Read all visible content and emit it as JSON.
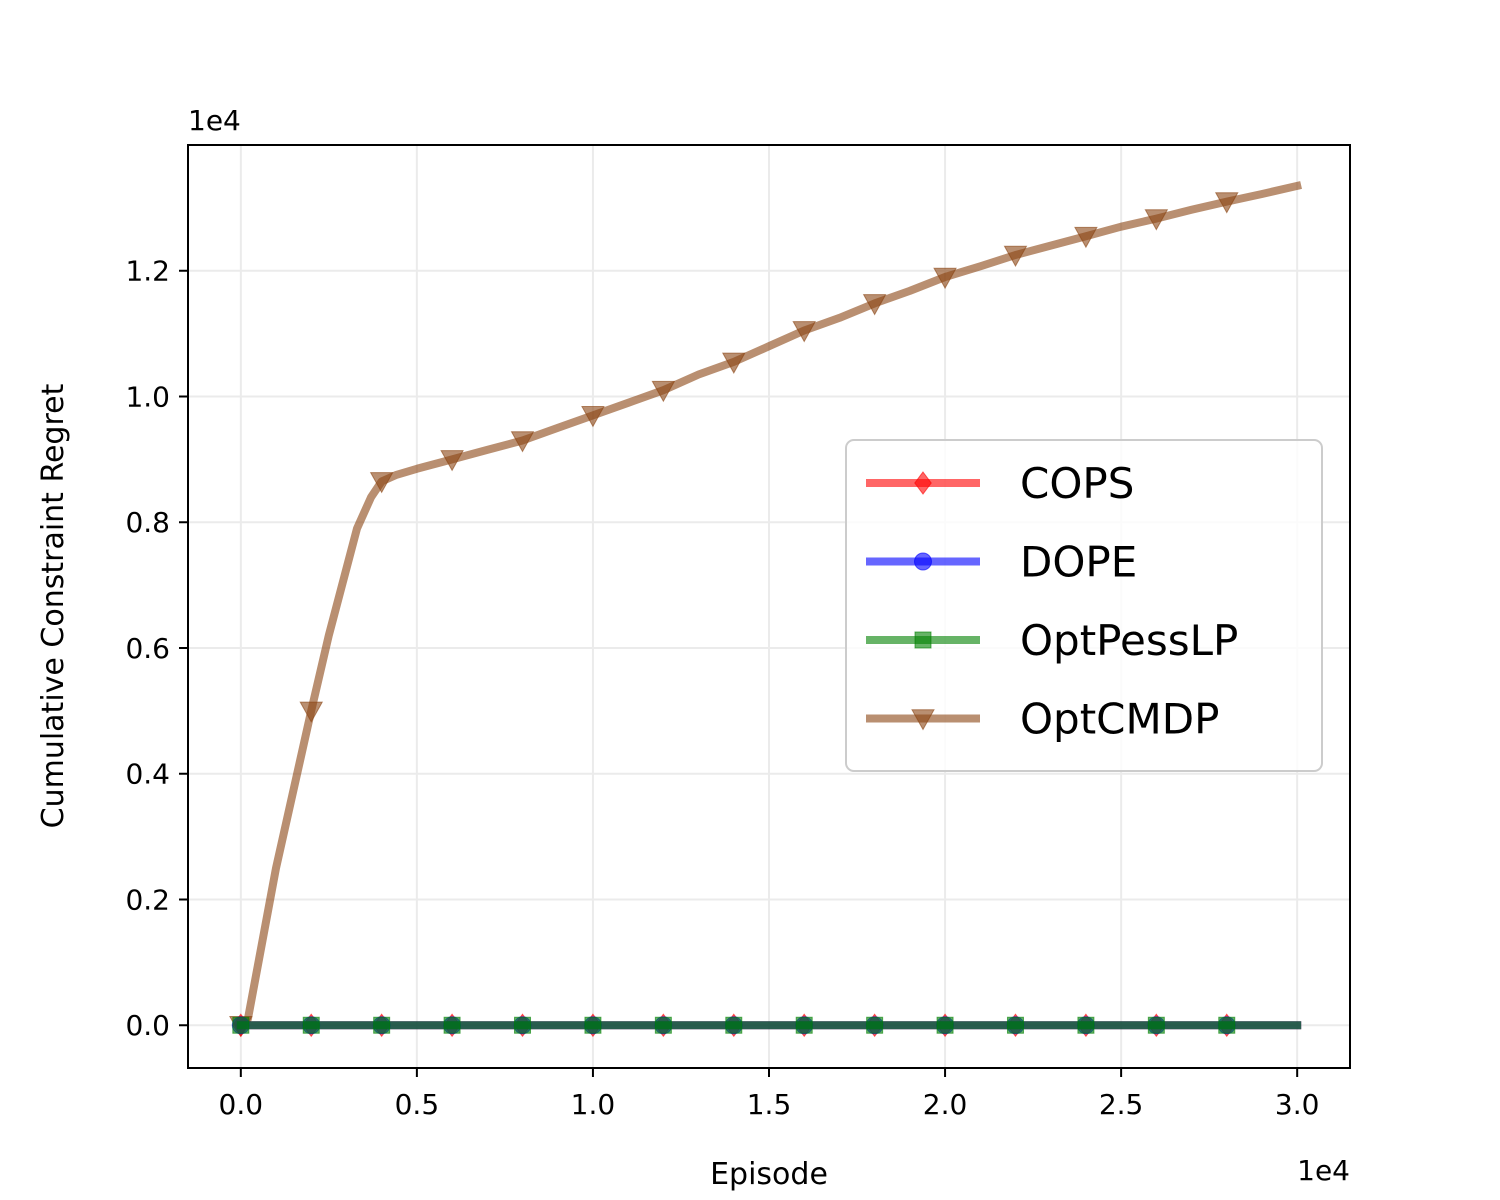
{
  "chart_data": {
    "type": "line",
    "title": "",
    "xlabel": "Episode",
    "ylabel": "Cumulative Constraint Regret",
    "x_offset_label": "1e4",
    "y_offset_label": "1e4",
    "xlim": [
      -0.15,
      3.15
    ],
    "ylim": [
      -0.068,
      1.4
    ],
    "x_ticks": [
      0.0,
      0.5,
      1.0,
      1.5,
      2.0,
      2.5,
      3.0
    ],
    "x_tick_labels": [
      "0.0",
      "0.5",
      "1.0",
      "1.5",
      "2.0",
      "2.5",
      "3.0"
    ],
    "y_ticks": [
      0.0,
      0.2,
      0.4,
      0.6,
      0.8,
      1.0,
      1.2
    ],
    "y_tick_labels": [
      "0.0",
      "0.2",
      "0.4",
      "0.6",
      "0.8",
      "1.0",
      "1.2"
    ],
    "grid": true,
    "legend_position": "center-right",
    "series": [
      {
        "name": "COPS",
        "color": "#ff0000",
        "marker": "diamond",
        "x": [
          0.0,
          0.2,
          0.4,
          0.6,
          0.8,
          1.0,
          1.2,
          1.4,
          1.6,
          1.8,
          2.0,
          2.2,
          2.4,
          2.6,
          2.8,
          3.0
        ],
        "y": [
          0,
          0,
          0,
          0,
          0,
          0,
          0,
          0,
          0,
          0,
          0,
          0,
          0,
          0,
          0,
          0
        ],
        "marker_indices": [
          0,
          1,
          2,
          3,
          4,
          5,
          6,
          7,
          8,
          9,
          10,
          11,
          12,
          13,
          14
        ]
      },
      {
        "name": "DOPE",
        "color": "#0000ff",
        "marker": "circle",
        "x": [
          0.0,
          0.2,
          0.4,
          0.6,
          0.8,
          1.0,
          1.2,
          1.4,
          1.6,
          1.8,
          2.0,
          2.2,
          2.4,
          2.6,
          2.8,
          3.0
        ],
        "y": [
          0,
          0,
          0,
          0,
          0,
          0,
          0,
          0,
          0,
          0,
          0,
          0,
          0,
          0,
          0,
          0
        ],
        "marker_indices": [
          0,
          1,
          2,
          3,
          4,
          5,
          6,
          7,
          8,
          9,
          10,
          11,
          12,
          13,
          14
        ]
      },
      {
        "name": "OptPessLP",
        "color": "#008000",
        "marker": "square",
        "x": [
          0.0,
          0.2,
          0.4,
          0.6,
          0.8,
          1.0,
          1.2,
          1.4,
          1.6,
          1.8,
          2.0,
          2.2,
          2.4,
          2.6,
          2.8,
          3.0
        ],
        "y": [
          0,
          0,
          0,
          0,
          0,
          0,
          0,
          0,
          0,
          0,
          0,
          0,
          0,
          0,
          0,
          0
        ],
        "marker_indices": [
          0,
          1,
          2,
          3,
          4,
          5,
          6,
          7,
          8,
          9,
          10,
          11,
          12,
          13,
          14
        ]
      },
      {
        "name": "OptCMDP",
        "color": "#8b4513",
        "marker": "triangle-down",
        "x": [
          0.0,
          0.02,
          0.1,
          0.2,
          0.25,
          0.33,
          0.37,
          0.4,
          0.44,
          0.5,
          0.6,
          0.7,
          0.8,
          0.9,
          1.0,
          1.1,
          1.2,
          1.3,
          1.4,
          1.5,
          1.6,
          1.7,
          1.8,
          1.9,
          2.0,
          2.1,
          2.2,
          2.3,
          2.4,
          2.5,
          2.6,
          2.7,
          2.8,
          2.9,
          3.0
        ],
        "y": [
          0,
          0.01,
          0.25,
          0.5,
          0.62,
          0.79,
          0.84,
          0.865,
          0.875,
          0.885,
          0.9,
          0.915,
          0.93,
          0.95,
          0.97,
          0.99,
          1.01,
          1.035,
          1.055,
          1.08,
          1.105,
          1.125,
          1.148,
          1.168,
          1.19,
          1.207,
          1.225,
          1.24,
          1.255,
          1.27,
          1.283,
          1.297,
          1.31,
          1.322,
          1.335
        ],
        "marker_indices": [
          0,
          3,
          7,
          10,
          12,
          14,
          16,
          18,
          20,
          22,
          24,
          26,
          28,
          30,
          32
        ]
      }
    ]
  }
}
